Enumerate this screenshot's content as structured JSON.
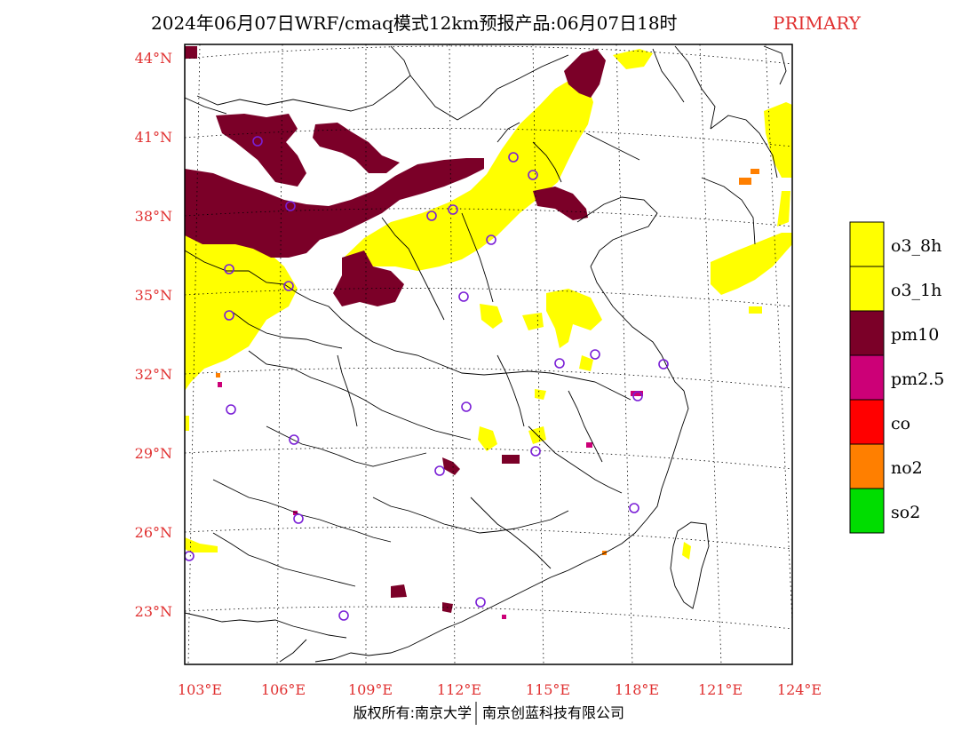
{
  "title": {
    "main": "2024年06月07日WRF/cmaq模式12km预报产品:06月07日18时",
    "tag": "PRIMARY"
  },
  "lat_labels": [
    "44°N",
    "41°N",
    "38°N",
    "35°N",
    "32°N",
    "29°N",
    "26°N",
    "23°N"
  ],
  "lon_labels": [
    "103°E",
    "106°E",
    "109°E",
    "112°E",
    "115°E",
    "118°E",
    "121°E",
    "124°E"
  ],
  "legend": [
    {
      "label": "o3_8h",
      "color": "#ffff00"
    },
    {
      "label": "o3_1h",
      "color": "#ffff00"
    },
    {
      "label": "pm10",
      "color": "#7b0028"
    },
    {
      "label": "pm2.5",
      "color": "#cc0077"
    },
    {
      "label": "co",
      "color": "#ff0000"
    },
    {
      "label": "no2",
      "color": "#ff7f00"
    },
    {
      "label": "so2",
      "color": "#00dd00"
    }
  ],
  "copyright": {
    "left": "版权所有:南京大学",
    "right": "南京创蓝科技有限公司"
  },
  "colors": {
    "o3": "#ffff00",
    "pm10": "#7b0028",
    "pm25": "#cc0077",
    "no2": "#ff7f00",
    "station": "#7a1fd6",
    "axis_label": "#e03030"
  }
}
